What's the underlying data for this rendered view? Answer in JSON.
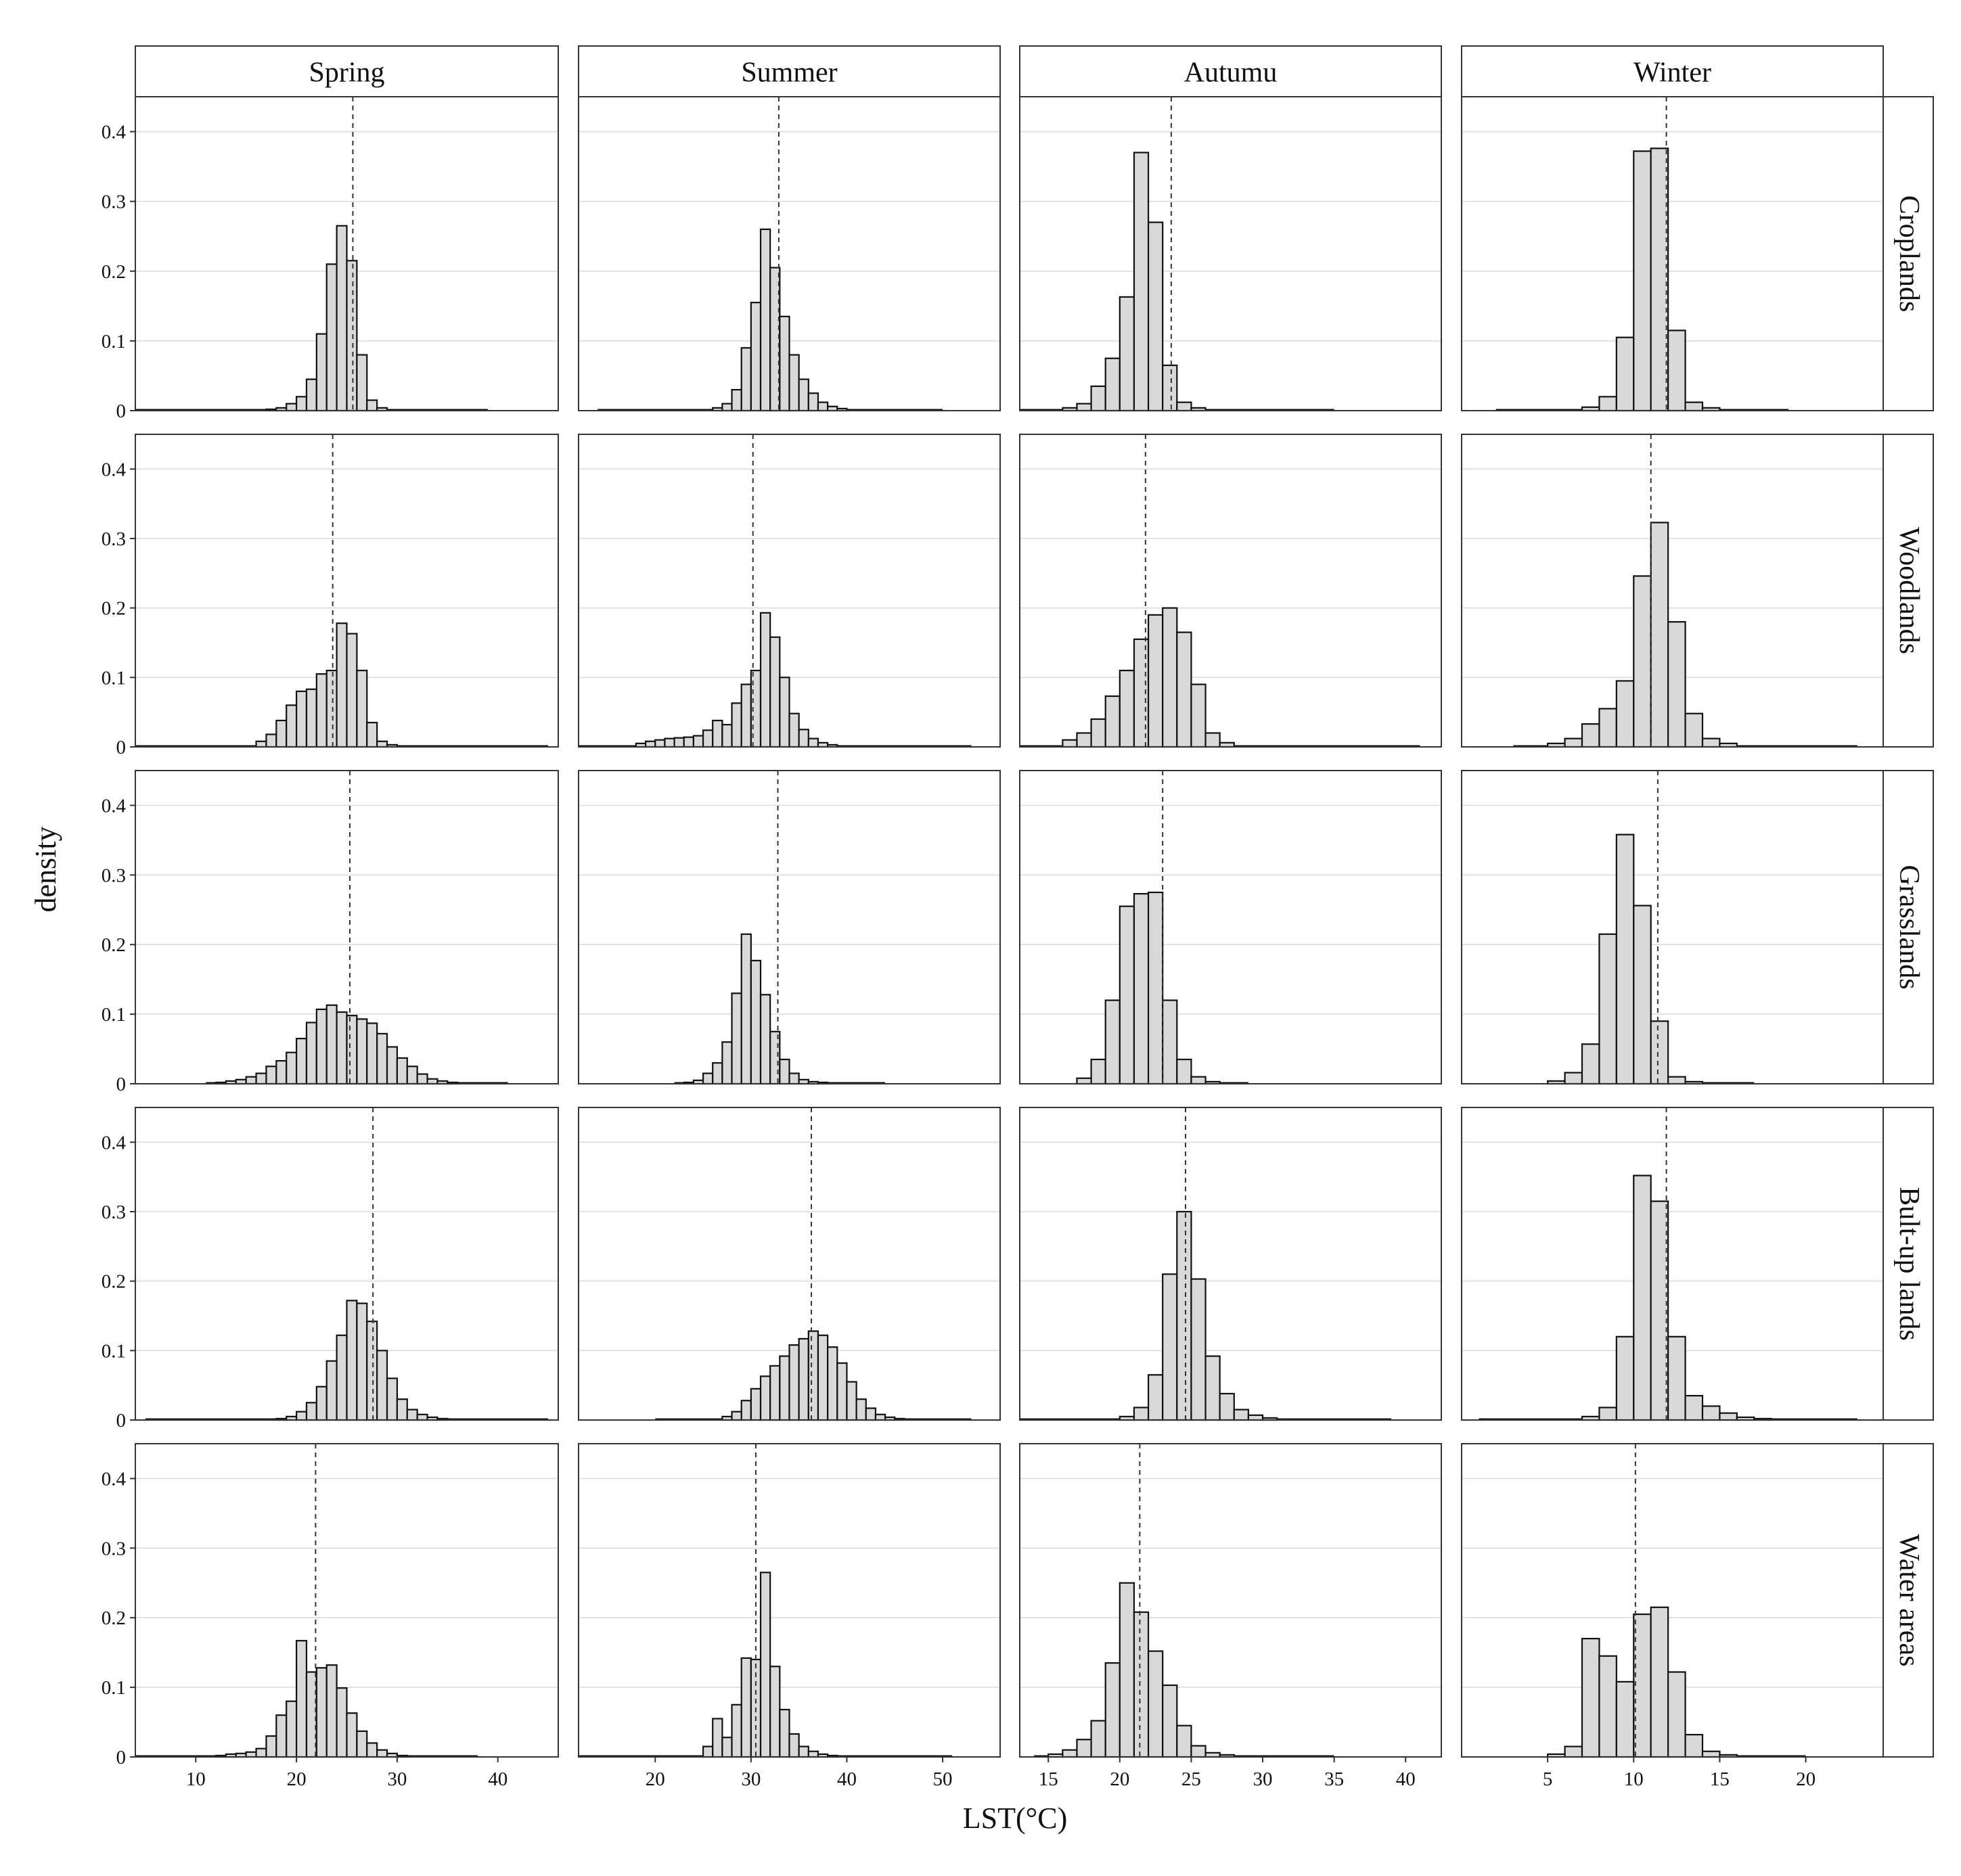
{
  "chart_data": {
    "type": "histogram",
    "layout": "facet grid: rows are land cover types, columns are seasons",
    "xlabel": "LST(°C)",
    "ylabel": "density",
    "ylim": [
      0,
      0.45
    ],
    "y_ticks": [
      0,
      0.1,
      0.2,
      0.3,
      0.4
    ],
    "y_tick_labels": [
      "0",
      "0.1",
      "0.2",
      "0.3",
      "0.4"
    ],
    "grid": true,
    "columns": [
      {
        "label": "Spring",
        "xlim": [
          4,
          46
        ],
        "x_ticks": [
          10,
          20,
          30,
          40
        ]
      },
      {
        "label": "Summer",
        "xlim": [
          12,
          56
        ],
        "x_ticks": [
          20,
          30,
          40,
          50
        ]
      },
      {
        "label": "Autumu",
        "xlim": [
          13,
          42.5
        ],
        "x_ticks": [
          15,
          20,
          25,
          30,
          35,
          40
        ]
      },
      {
        "label": "Winter",
        "xlim": [
          0,
          24.5
        ],
        "x_ticks": [
          5,
          10,
          15,
          20
        ]
      }
    ],
    "rows": [
      {
        "label": "Croplands",
        "panels": [
          {
            "bin_start": 17,
            "bin_width": 1,
            "mean": 25.6,
            "tail": [
              4,
              39
            ],
            "density": [
              0.002,
              0.004,
              0.01,
              0.02,
              0.045,
              0.11,
              0.21,
              0.265,
              0.215,
              0.08,
              0.015,
              0.004
            ]
          },
          {
            "bin_start": 26,
            "bin_width": 1,
            "mean": 32.9,
            "tail": [
              14,
              50
            ],
            "density": [
              0.004,
              0.01,
              0.03,
              0.09,
              0.155,
              0.26,
              0.205,
              0.135,
              0.08,
              0.045,
              0.025,
              0.012,
              0.006,
              0.003
            ]
          },
          {
            "bin_start": 16,
            "bin_width": 1,
            "mean": 23.6,
            "tail": [
              13,
              35
            ],
            "density": [
              0.004,
              0.01,
              0.035,
              0.075,
              0.163,
              0.37,
              0.27,
              0.065,
              0.012,
              0.004
            ]
          },
          {
            "bin_start": 7,
            "bin_width": 1,
            "mean": 11.9,
            "tail": [
              2,
              19
            ],
            "density": [
              0.005,
              0.02,
              0.105,
              0.372,
              0.376,
              0.115,
              0.012,
              0.004
            ]
          }
        ]
      },
      {
        "label": "Woodlands",
        "panels": [
          {
            "bin_start": 16,
            "bin_width": 1,
            "mean": 23.6,
            "tail": [
              4,
              45
            ],
            "density": [
              0.008,
              0.018,
              0.038,
              0.06,
              0.08,
              0.083,
              0.105,
              0.11,
              0.178,
              0.163,
              0.11,
              0.035,
              0.008,
              0.003
            ]
          },
          {
            "bin_start": 18,
            "bin_width": 1,
            "mean": 30.2,
            "tail": [
              12,
              53
            ],
            "density": [
              0.005,
              0.008,
              0.01,
              0.012,
              0.013,
              0.014,
              0.016,
              0.024,
              0.038,
              0.032,
              0.063,
              0.09,
              0.11,
              0.193,
              0.158,
              0.1,
              0.048,
              0.025,
              0.012,
              0.006,
              0.003
            ]
          },
          {
            "bin_start": 16,
            "bin_width": 1,
            "mean": 21.8,
            "tail": [
              13,
              41
            ],
            "density": [
              0.01,
              0.02,
              0.04,
              0.073,
              0.11,
              0.155,
              0.19,
              0.2,
              0.165,
              0.09,
              0.02,
              0.006
            ]
          },
          {
            "bin_start": 5,
            "bin_width": 1,
            "mean": 11.0,
            "tail": [
              3,
              23
            ],
            "density": [
              0.005,
              0.012,
              0.033,
              0.055,
              0.095,
              0.246,
              0.323,
              0.18,
              0.048,
              0.012,
              0.005
            ]
          }
        ]
      },
      {
        "label": "Grasslands",
        "panels": [
          {
            "bin_start": 12,
            "bin_width": 1,
            "mean": 25.3,
            "tail": [
              11,
              41
            ],
            "density": [
              0.002,
              0.004,
              0.006,
              0.01,
              0.015,
              0.025,
              0.033,
              0.045,
              0.065,
              0.088,
              0.107,
              0.113,
              0.103,
              0.098,
              0.093,
              0.087,
              0.072,
              0.053,
              0.037,
              0.025,
              0.014,
              0.007,
              0.004,
              0.002
            ]
          },
          {
            "bin_start": 23,
            "bin_width": 1,
            "mean": 32.8,
            "tail": [
              22,
              44
            ],
            "density": [
              0.002,
              0.005,
              0.015,
              0.03,
              0.06,
              0.13,
              0.215,
              0.177,
              0.128,
              0.075,
              0.035,
              0.015,
              0.006,
              0.003,
              0.002
            ]
          },
          {
            "bin_start": 17,
            "bin_width": 1,
            "mean": 23.0,
            "tail": [
              17,
              29
            ],
            "density": [
              0.008,
              0.035,
              0.12,
              0.255,
              0.273,
              0.275,
              0.12,
              0.035,
              0.01,
              0.003
            ]
          },
          {
            "bin_start": 5,
            "bin_width": 1,
            "mean": 11.4,
            "tail": [
              6,
              17
            ],
            "density": [
              0.004,
              0.016,
              0.057,
              0.215,
              0.358,
              0.256,
              0.09,
              0.01,
              0.003
            ]
          }
        ]
      },
      {
        "label": "Bult-up lands",
        "panels": [
          {
            "bin_start": 18,
            "bin_width": 1,
            "mean": 27.6,
            "tail": [
              5,
              45
            ],
            "density": [
              0.002,
              0.005,
              0.012,
              0.025,
              0.048,
              0.085,
              0.122,
              0.172,
              0.168,
              0.142,
              0.1,
              0.06,
              0.03,
              0.015,
              0.008,
              0.004,
              0.002
            ]
          },
          {
            "bin_start": 27,
            "bin_width": 1,
            "mean": 36.3,
            "tail": [
              20,
              53
            ],
            "density": [
              0.005,
              0.012,
              0.028,
              0.045,
              0.063,
              0.078,
              0.092,
              0.108,
              0.117,
              0.128,
              0.122,
              0.105,
              0.082,
              0.055,
              0.03,
              0.017,
              0.008,
              0.004,
              0.002
            ]
          },
          {
            "bin_start": 20,
            "bin_width": 1,
            "mean": 24.6,
            "tail": [
              13,
              39
            ],
            "density": [
              0.005,
              0.018,
              0.065,
              0.21,
              0.3,
              0.203,
              0.092,
              0.038,
              0.015,
              0.007,
              0.003
            ]
          },
          {
            "bin_start": 7,
            "bin_width": 1,
            "mean": 11.9,
            "tail": [
              1,
              23
            ],
            "density": [
              0.005,
              0.018,
              0.12,
              0.352,
              0.315,
              0.12,
              0.035,
              0.02,
              0.01,
              0.004,
              0.002
            ]
          }
        ]
      },
      {
        "label": "Water areas",
        "panels": [
          {
            "bin_start": 12,
            "bin_width": 1,
            "mean": 21.9,
            "tail": [
              4,
              38
            ],
            "density": [
              0.002,
              0.004,
              0.005,
              0.007,
              0.012,
              0.03,
              0.06,
              0.08,
              0.167,
              0.122,
              0.128,
              0.132,
              0.099,
              0.063,
              0.037,
              0.02,
              0.01,
              0.005,
              0.002
            ]
          },
          {
            "bin_start": 25,
            "bin_width": 1,
            "mean": 30.5,
            "tail": [
              12,
              51
            ],
            "density": [
              0.015,
              0.055,
              0.028,
              0.075,
              0.142,
              0.14,
              0.265,
              0.13,
              0.068,
              0.033,
              0.015,
              0.008,
              0.004,
              0.002
            ]
          },
          {
            "bin_start": 15,
            "bin_width": 1,
            "mean": 21.4,
            "tail": [
              14,
              35
            ],
            "density": [
              0.004,
              0.01,
              0.025,
              0.052,
              0.135,
              0.25,
              0.208,
              0.152,
              0.103,
              0.045,
              0.016,
              0.006,
              0.003
            ]
          },
          {
            "bin_start": 5,
            "bin_width": 1,
            "mean": 10.1,
            "tail": [
              5,
              20
            ],
            "density": [
              0.004,
              0.015,
              0.17,
              0.145,
              0.108,
              0.205,
              0.215,
              0.122,
              0.032,
              0.008,
              0.003
            ]
          }
        ]
      }
    ]
  }
}
